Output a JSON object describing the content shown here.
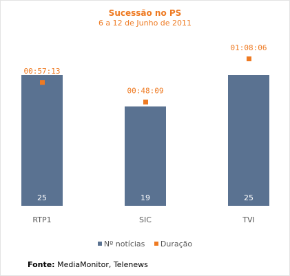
{
  "chart_data": {
    "type": "bar",
    "title": "Sucessão no PS",
    "subtitle": "6 a 12 de Junho de 2011",
    "categories": [
      "RTP1",
      "SIC",
      "TVI"
    ],
    "series": [
      {
        "name": "Nº notícias",
        "kind": "bar",
        "color": "#5a7291",
        "values": [
          25,
          19,
          25
        ],
        "labels": [
          "25",
          "19",
          "25"
        ]
      },
      {
        "name": "Duração",
        "kind": "marker",
        "color": "#ee7a22",
        "values_seconds": [
          3433,
          2889,
          4086
        ],
        "labels": [
          "00:57:13",
          "00:48:09",
          "01:08:06"
        ]
      }
    ],
    "legend_position": "bottom",
    "grid": false
  },
  "source": {
    "label": "Fonte:",
    "text": " MediaMonitor, Telenews"
  }
}
